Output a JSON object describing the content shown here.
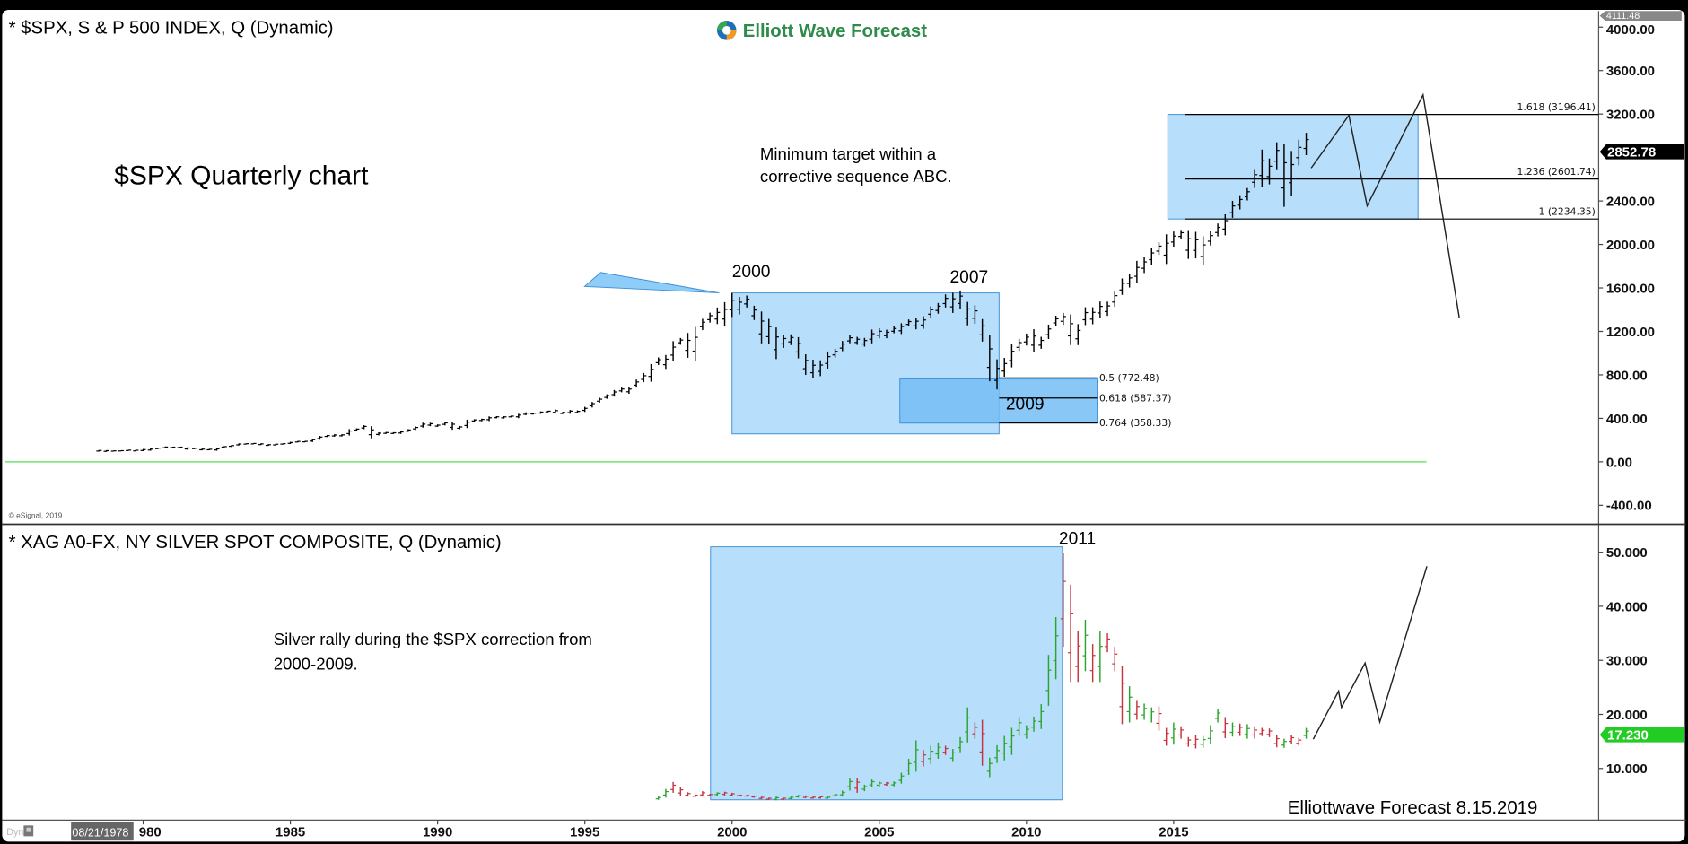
{
  "logo": {
    "text": "Elliott Wave Forecast",
    "colors": {
      "green": "#3aa655",
      "blue": "#1f6fb5",
      "orange": "#f29a1f"
    }
  },
  "footer_label": "Elliottwave Forecast  8.15.2019",
  "copyright": "© eSignal, 2019",
  "dyn_label": "Dyn",
  "cursor_date": "08/21/1978",
  "colors": {
    "box": "#b3dcfb",
    "box_dark": "#74bdf4",
    "box_edge": "#3e8fd6",
    "zero_line": "#55dd55",
    "up": "#2aa52a",
    "down": "#c8323c",
    "badge_green": "#22cc22"
  },
  "x_axis": {
    "ticks": [
      {
        "year": 1980,
        "label": "980"
      },
      {
        "year": 1985,
        "label": "1985"
      },
      {
        "year": 1990,
        "label": "1990"
      },
      {
        "year": 1995,
        "label": "1995"
      },
      {
        "year": 2000,
        "label": "2000"
      },
      {
        "year": 2005,
        "label": "2005"
      },
      {
        "year": 2010,
        "label": "2010"
      },
      {
        "year": 2015,
        "label": "2015"
      }
    ]
  },
  "chart_data": [
    {
      "type": "ohlc-bar",
      "title": "* $SPX, S & P 500 INDEX, Q (Dynamic)",
      "subtitle": "$SPX Quarterly chart",
      "annotation": "Minimum target within a corrective sequence ABC.",
      "annotation_lines": [
        "Minimum target within a",
        "corrective sequence ABC."
      ],
      "ylim": [
        -500,
        4111.48
      ],
      "y_ticks": [
        {
          "v": 4000,
          "label": "4000.00"
        },
        {
          "v": 3600,
          "label": "3600.00"
        },
        {
          "v": 3200,
          "label": "3200.00"
        },
        {
          "v": 2400,
          "label": "2400.00"
        },
        {
          "v": 2000,
          "label": "2000.00"
        },
        {
          "v": 1600,
          "label": "1600.00"
        },
        {
          "v": 1200,
          "label": "1200.00"
        },
        {
          "v": 800,
          "label": "800.00"
        },
        {
          "v": 400,
          "label": "400.00"
        },
        {
          "v": 0,
          "label": "0.00"
        },
        {
          "v": -400,
          "label": "-400.00"
        }
      ],
      "max_badge": "4111.48",
      "last_badge": {
        "v": 2852.78,
        "label": "2852.78"
      },
      "start": 1978.5,
      "step": 0.25,
      "bars": [
        [
          95,
          108
        ],
        [
          92,
          107
        ],
        [
          96,
          103
        ],
        [
          98,
          104
        ],
        [
          101,
          110
        ],
        [
          96,
          111
        ],
        [
          98,
          118
        ],
        [
          102,
          123
        ],
        [
          117,
          130
        ],
        [
          124,
          141
        ],
        [
          126,
          139
        ],
        [
          128,
          138
        ],
        [
          112,
          133
        ],
        [
          118,
          128
        ],
        [
          106,
          121
        ],
        [
          107,
          119
        ],
        [
          102,
          126
        ],
        [
          132,
          143
        ],
        [
          138,
          154
        ],
        [
          150,
          170
        ],
        [
          160,
          170
        ],
        [
          162,
          172
        ],
        [
          154,
          170
        ],
        [
          147,
          162
        ],
        [
          150,
          167
        ],
        [
          160,
          170
        ],
        [
          164,
          184
        ],
        [
          178,
          192
        ],
        [
          180,
          192
        ],
        [
          182,
          212
        ],
        [
          203,
          238
        ],
        [
          228,
          247
        ],
        [
          231,
          254
        ],
        [
          233,
          254
        ],
        [
          242,
          301
        ],
        [
          285,
          308
        ],
        [
          300,
          337
        ],
        [
          216,
          328
        ],
        [
          243,
          272
        ],
        [
          257,
          274
        ],
        [
          256,
          272
        ],
        [
          257,
          283
        ],
        [
          275,
          301
        ],
        [
          293,
          326
        ],
        [
          315,
          360
        ],
        [
          328,
          360
        ],
        [
          322,
          344
        ],
        [
          335,
          368
        ],
        [
          295,
          368
        ],
        [
          300,
          330
        ],
        [
          311,
          388
        ],
        [
          369,
          392
        ],
        [
          373,
          397
        ],
        [
          375,
          418
        ],
        [
          400,
          420
        ],
        [
          398,
          420
        ],
        [
          409,
          425
        ],
        [
          402,
          442
        ],
        [
          429,
          456
        ],
        [
          435,
          452
        ],
        [
          442,
          464
        ],
        [
          456,
          470
        ],
        [
          444,
          482
        ],
        [
          439,
          460
        ],
        [
          442,
          477
        ],
        [
          445,
          473
        ],
        [
          459,
          506
        ],
        [
          500,
          551
        ],
        [
          544,
          590
        ],
        [
          580,
          621
        ],
        [
          600,
          661
        ],
        [
          640,
          683
        ],
        [
          626,
          688
        ],
        [
          683,
          757
        ],
        [
          733,
          817
        ],
        [
          737,
          899
        ],
        [
          891,
          961
        ],
        [
          855,
          983
        ],
        [
          927,
          1110
        ],
        [
          1077,
          1139
        ],
        [
          957,
          1186
        ],
        [
          923,
          1241
        ],
        [
          1212,
          1316
        ],
        [
          1281,
          1372
        ],
        [
          1268,
          1420
        ],
        [
          1247,
          1469
        ],
        [
          1333,
          1553
        ],
        [
          1356,
          1517
        ],
        [
          1420,
          1530
        ],
        [
          1305,
          1436
        ],
        [
          1090,
          1383
        ],
        [
          1081,
          1315
        ],
        [
          945,
          1236
        ],
        [
          1048,
          1171
        ],
        [
          1074,
          1173
        ],
        [
          952,
          1147
        ],
        [
          800,
          989
        ],
        [
          768,
          940
        ],
        [
          788,
          934
        ],
        [
          858,
          1015
        ],
        [
          960,
          1040
        ],
        [
          1018,
          1112
        ],
        [
          1091,
          1163
        ],
        [
          1076,
          1150
        ],
        [
          1060,
          1140
        ],
        [
          1090,
          1217
        ],
        [
          1136,
          1229
        ],
        [
          1137,
          1216
        ],
        [
          1183,
          1245
        ],
        [
          1176,
          1275
        ],
        [
          1245,
          1310
        ],
        [
          1219,
          1326
        ],
        [
          1224,
          1340
        ],
        [
          1327,
          1431
        ],
        [
          1363,
          1461
        ],
        [
          1420,
          1540
        ],
        [
          1370,
          1556
        ],
        [
          1406,
          1576
        ],
        [
          1256,
          1471
        ],
        [
          1270,
          1440
        ],
        [
          1106,
          1313
        ],
        [
          741,
          1167
        ],
        [
          666,
          943
        ],
        [
          783,
          956
        ],
        [
          869,
          1080
        ],
        [
          1020,
          1130
        ],
        [
          1070,
          1180
        ],
        [
          1010,
          1220
        ],
        [
          1040,
          1150
        ],
        [
          1130,
          1262
        ],
        [
          1250,
          1344
        ],
        [
          1260,
          1370
        ],
        [
          1074,
          1356
        ],
        [
          1074,
          1267
        ],
        [
          1258,
          1422
        ],
        [
          1266,
          1422
        ],
        [
          1325,
          1475
        ],
        [
          1343,
          1474
        ],
        [
          1426,
          1573
        ],
        [
          1536,
          1687
        ],
        [
          1604,
          1730
        ],
        [
          1646,
          1849
        ],
        [
          1737,
          1883
        ],
        [
          1814,
          1968
        ],
        [
          1904,
          2019
        ],
        [
          1820,
          2093
        ],
        [
          1980,
          2119
        ],
        [
          2048,
          2134
        ],
        [
          1867,
          2132
        ],
        [
          1872,
          2116
        ],
        [
          1810,
          2075
        ],
        [
          1991,
          2120
        ],
        [
          2074,
          2193
        ],
        [
          2084,
          2277
        ],
        [
          2245,
          2401
        ],
        [
          2322,
          2453
        ],
        [
          2405,
          2519
        ],
        [
          2520,
          2694
        ],
        [
          2532,
          2873
        ],
        [
          2553,
          2791
        ],
        [
          2692,
          2940
        ],
        [
          2346,
          2926
        ],
        [
          2443,
          2860
        ],
        [
          2728,
          2964
        ],
        [
          2822,
          3027
        ]
      ],
      "projection": [
        [
          2019.67,
          2703
        ],
        [
          2020.95,
          3188
        ],
        [
          2021.57,
          2356
        ],
        [
          2023.47,
          3376
        ],
        [
          2024.7,
          1327
        ]
      ],
      "boxes": [
        {
          "x": [
            2000,
            2009.07
          ],
          "y": [
            257,
            1554
          ],
          "style": "light"
        },
        {
          "x": [
            2005.7,
            2012.4
          ],
          "y": [
            356,
            762
          ],
          "style": "dark"
        },
        {
          "x": [
            2014.8,
            2023.3
          ],
          "y": [
            2234.35,
            3196.41
          ],
          "style": "light"
        }
      ],
      "fib_levels": [
        {
          "v": 3196.41,
          "label": "1.618 (3196.41)",
          "from": 2015.4
        },
        {
          "v": 2601.74,
          "label": "1.236 (2601.74)",
          "from": 2015.4
        },
        {
          "v": 2234.35,
          "label": "1 (2234.35)",
          "from": 2015.4
        },
        {
          "v": 772.48,
          "label": "0.5 (772.48)",
          "from": 2009.07,
          "to": 2012.4
        },
        {
          "v": 587.37,
          "label": "0.618 (587.37)",
          "from": 2009.07,
          "to": 2012.4
        },
        {
          "v": 358.33,
          "label": "0.764 (358.33)",
          "from": 2009.07,
          "to": 2012.4
        }
      ],
      "labels": [
        {
          "text": "2000",
          "year": 2000.0,
          "v": 1700
        },
        {
          "text": "2007",
          "year": 2007.4,
          "v": 1650
        },
        {
          "text": "2009",
          "year": 2009.3,
          "v": 480
        }
      ]
    },
    {
      "type": "ohlc-bar",
      "title": "* XAG A0-FX, NY SILVER SPOT COMPOSITE, Q (Dynamic)",
      "annotation": "Silver rally during the $SPX correction from 2000-2009.",
      "annotation_lines": [
        "Silver rally during the $SPX correction from",
        "2000-2009."
      ],
      "ylim": [
        0,
        55
      ],
      "y_ticks": [
        {
          "v": 50,
          "label": "50.000"
        },
        {
          "v": 40,
          "label": "40.000"
        },
        {
          "v": 30,
          "label": "30.000"
        },
        {
          "v": 20,
          "label": "20.000"
        },
        {
          "v": 10,
          "label": "10.000"
        }
      ],
      "last_badge": {
        "v": 17.23,
        "label": "17.230"
      },
      "start": 1997.5,
      "step": 0.25,
      "bars": [
        [
          4.2,
          4.8,
          1
        ],
        [
          4.6,
          6.2,
          1
        ],
        [
          5.5,
          7.5,
          0
        ],
        [
          5,
          6.5,
          0
        ],
        [
          4.8,
          5.6,
          0
        ],
        [
          4.7,
          5.2,
          0
        ],
        [
          4.8,
          5.8,
          0
        ],
        [
          4.9,
          5.3,
          0
        ],
        [
          5,
          5.6,
          1
        ],
        [
          5,
          5.7,
          0
        ],
        [
          4.9,
          5.5,
          0
        ],
        [
          4.9,
          5.1,
          0
        ],
        [
          4.8,
          5.1,
          0
        ],
        [
          4.6,
          5.0,
          0
        ],
        [
          4.3,
          4.8,
          0
        ],
        [
          4.2,
          4.6,
          0
        ],
        [
          4.1,
          4.8,
          1
        ],
        [
          4.2,
          4.6,
          0
        ],
        [
          4.3,
          4.8,
          1
        ],
        [
          4.6,
          5.1,
          1
        ],
        [
          4.5,
          5,
          0
        ],
        [
          4.4,
          4.8,
          0
        ],
        [
          4.4,
          4.9,
          0
        ],
        [
          4.4,
          4.8,
          1
        ],
        [
          4.8,
          5.3,
          1
        ],
        [
          4.8,
          5.9,
          1
        ],
        [
          5.9,
          8.3,
          1
        ],
        [
          5.5,
          8.3,
          0
        ],
        [
          5.8,
          7,
          1
        ],
        [
          6.5,
          8,
          1
        ],
        [
          6.6,
          7.6,
          1
        ],
        [
          6.8,
          7.5,
          0
        ],
        [
          6.7,
          7.6,
          1
        ],
        [
          7.2,
          9.2,
          1
        ],
        [
          8.8,
          11.8,
          1
        ],
        [
          9.4,
          15.2,
          1
        ],
        [
          10.4,
          13.4,
          0
        ],
        [
          10.8,
          14.2,
          1
        ],
        [
          11.8,
          14.8,
          1
        ],
        [
          12.5,
          14.2,
          0
        ],
        [
          11.2,
          13.6,
          1
        ],
        [
          13,
          15.8,
          1
        ],
        [
          14.8,
          21.3,
          1
        ],
        [
          15.5,
          18.5,
          0
        ],
        [
          10.5,
          19,
          0
        ],
        [
          8.4,
          12,
          1
        ],
        [
          11,
          14.3,
          1
        ],
        [
          11.5,
          16,
          1
        ],
        [
          12.5,
          17.5,
          1
        ],
        [
          16,
          19.5,
          1
        ],
        [
          15.5,
          18,
          1
        ],
        [
          16.8,
          19.6,
          1
        ],
        [
          17.3,
          21.9,
          1
        ],
        [
          21.6,
          31,
          1
        ],
        [
          26.5,
          38,
          1
        ],
        [
          32.5,
          49.8,
          0
        ],
        [
          26,
          44,
          0
        ],
        [
          26,
          35.5,
          0
        ],
        [
          28,
          37.5,
          1
        ],
        [
          26,
          33,
          0
        ],
        [
          26,
          35.4,
          1
        ],
        [
          31.5,
          35,
          0
        ],
        [
          28,
          32.5,
          0
        ],
        [
          18.2,
          29,
          0
        ],
        [
          18.5,
          25.2,
          1
        ],
        [
          19,
          22.5,
          0
        ],
        [
          19,
          22,
          1
        ],
        [
          18.5,
          21.3,
          1
        ],
        [
          17,
          21.5,
          0
        ],
        [
          14.2,
          17.5,
          0
        ],
        [
          14.4,
          18.5,
          1
        ],
        [
          15.5,
          17.8,
          0
        ],
        [
          14,
          15.8,
          0
        ],
        [
          13.7,
          16.1,
          0
        ],
        [
          13.8,
          16,
          1
        ],
        [
          14.5,
          18,
          1
        ],
        [
          18.5,
          21,
          1
        ],
        [
          15.6,
          19.5,
          0
        ],
        [
          15.9,
          18.5,
          1
        ],
        [
          16,
          18.3,
          0
        ],
        [
          15.5,
          18.2,
          1
        ],
        [
          15.5,
          17.8,
          0
        ],
        [
          16,
          17.5,
          0
        ],
        [
          15.8,
          17.4,
          0
        ],
        [
          13.9,
          16.2,
          0
        ],
        [
          13.8,
          15.5,
          1
        ],
        [
          14.5,
          16.2,
          0
        ],
        [
          14.2,
          15.7,
          0
        ],
        [
          15.5,
          17.5,
          1
        ]
      ],
      "projection": [
        [
          2019.74,
          15.4
        ],
        [
          2020.6,
          24.3
        ],
        [
          2020.7,
          21.3
        ],
        [
          2021.5,
          29.5
        ],
        [
          2022.0,
          18.6
        ],
        [
          2023.6,
          47.4
        ]
      ],
      "boxes": [
        {
          "x": [
            1999.27,
            2011.22
          ],
          "y": [
            4.2,
            51
          ],
          "style": "light"
        }
      ],
      "labels": [
        {
          "text": "2011",
          "year": 2011.1,
          "v": 51.5
        }
      ]
    }
  ]
}
